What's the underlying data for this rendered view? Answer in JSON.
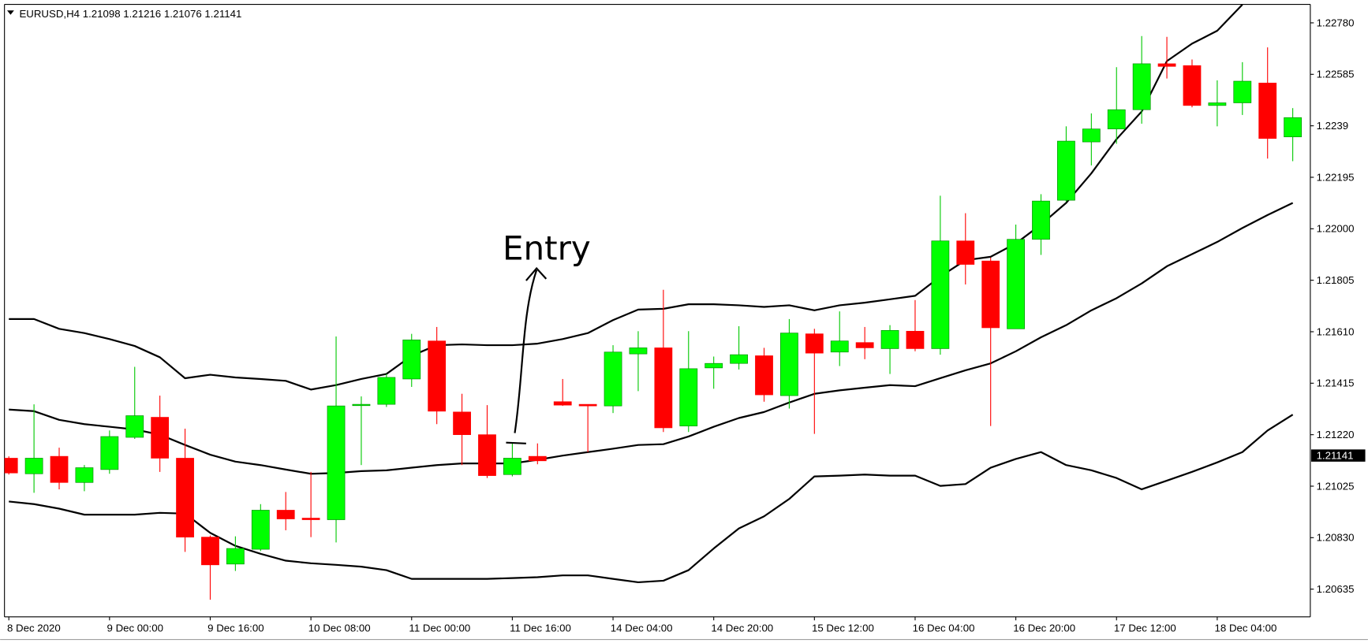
{
  "chart_data": {
    "type": "candlestick",
    "title": "EURUSD,H4  1.21098 1.21216 1.21076 1.21141",
    "annotation": "Entry",
    "current_price": 1.21141,
    "up_color": "#00ff00",
    "down_color": "#ff0000",
    "categories": [
      "8 Dec 2020",
      null,
      null,
      null,
      "9 Dec 00:00",
      null,
      null,
      null,
      "9 Dec 16:00",
      null,
      null,
      null,
      "10 Dec 08:00",
      null,
      null,
      null,
      "11 Dec 00:00",
      null,
      null,
      null,
      "11 Dec 16:00",
      null,
      null,
      null,
      "14 Dec 04:00",
      null,
      null,
      null,
      "14 Dec 20:00",
      null,
      null,
      null,
      "15 Dec 12:00",
      null,
      null,
      null,
      "16 Dec 04:00",
      null,
      null,
      null,
      "16 Dec 20:00",
      null,
      null,
      null,
      "17 Dec 12:00",
      null,
      null,
      null,
      "18 Dec 04:00",
      null,
      null,
      null
    ],
    "open": [
      1.21131,
      1.21072,
      1.21138,
      1.21039,
      1.21088,
      1.2121,
      1.21286,
      1.21131,
      1.20832,
      1.2073,
      1.20786,
      1.20934,
      1.20904,
      1.20898,
      1.21332,
      1.21335,
      1.21431,
      1.21575,
      1.21306,
      1.2122,
      1.21069,
      1.21138,
      1.21345,
      1.21335,
      1.21329,
      1.21526,
      1.21549,
      1.21253,
      1.21473,
      1.2149,
      1.21519,
      1.21368,
      1.21602,
      1.21533,
      1.21569,
      1.21546,
      1.21612,
      1.21546,
      1.21954,
      1.21878,
      1.21621,
      1.2196,
      1.22108,
      1.22329,
      1.22378,
      1.22451,
      1.22625,
      1.22618,
      1.22467,
      1.22477,
      1.22552,
      1.22348
    ],
    "high": [
      1.21138,
      1.21335,
      1.21171,
      1.21105,
      1.21236,
      1.21477,
      1.21368,
      1.21243,
      1.20838,
      1.20835,
      1.20957,
      1.21003,
      1.21079,
      1.21592,
      1.21365,
      1.2145,
      1.21602,
      1.21628,
      1.21375,
      1.21332,
      1.21187,
      1.21187,
      1.21431,
      1.21335,
      1.21559,
      1.21612,
      1.21769,
      1.21612,
      1.21516,
      1.21631,
      1.21549,
      1.21658,
      1.21621,
      1.21687,
      1.21628,
      1.21635,
      1.2173,
      1.22125,
      1.22059,
      1.21891,
      1.22016,
      1.22131,
      1.22388,
      1.22437,
      1.22612,
      1.2273,
      1.22727,
      1.22641,
      1.22562,
      1.22631,
      1.22687,
      1.22457
    ],
    "low": [
      1.21069,
      1.21,
      1.21013,
      1.21006,
      1.21072,
      1.21204,
      1.21079,
      1.20776,
      1.20595,
      1.20704,
      1.20779,
      1.20858,
      1.20832,
      1.20812,
      1.21105,
      1.21325,
      1.21401,
      1.2126,
      1.21105,
      1.21056,
      1.21062,
      1.21108,
      1.21329,
      1.21154,
      1.21302,
      1.21385,
      1.2123,
      1.2123,
      1.21394,
      1.21467,
      1.21345,
      1.21319,
      1.21223,
      1.2148,
      1.21506,
      1.2145,
      1.21536,
      1.21523,
      1.21789,
      1.21253,
      1.21621,
      1.21901,
      1.22102,
      1.2224,
      1.22322,
      1.22398,
      1.22569,
      1.2246,
      1.22388,
      1.22431,
      1.22266,
      1.22256
    ],
    "close": [
      1.21075,
      1.21131,
      1.21039,
      1.21095,
      1.21213,
      1.21292,
      1.21131,
      1.20832,
      1.20727,
      1.20789,
      1.20934,
      1.20901,
      1.20898,
      1.21329,
      1.21335,
      1.21437,
      1.21579,
      1.21309,
      1.2122,
      1.21065,
      1.21131,
      1.21121,
      1.21332,
      1.21329,
      1.21533,
      1.21549,
      1.21246,
      1.2147,
      1.2149,
      1.21523,
      1.21371,
      1.21605,
      1.21529,
      1.21575,
      1.21549,
      1.21615,
      1.21546,
      1.21954,
      1.21865,
      1.21625,
      1.2196,
      1.22105,
      1.22332,
      1.22378,
      1.22451,
      1.22625,
      1.22615,
      1.22467,
      1.22477,
      1.22559,
      1.22342,
      1.22421
    ],
    "bollinger": {
      "color": "#000000",
      "upper": [
        1.21658,
        1.21658,
        1.21621,
        1.21605,
        1.21582,
        1.21556,
        1.21513,
        1.21434,
        1.21447,
        1.21437,
        1.21431,
        1.21424,
        1.21391,
        1.21408,
        1.21431,
        1.2145,
        1.21519,
        1.21559,
        1.21562,
        1.21559,
        1.21559,
        1.21565,
        1.21582,
        1.21605,
        1.21654,
        1.21694,
        1.21697,
        1.21714,
        1.21714,
        1.2171,
        1.21704,
        1.2171,
        1.21691,
        1.2171,
        1.2172,
        1.21733,
        1.21746,
        1.21819,
        1.21881,
        1.21894,
        1.21944,
        1.22016,
        1.22098,
        1.2221,
        1.22339,
        1.22444,
        1.22635,
        1.22701,
        1.2275,
        1.22849,
        null,
        null
      ],
      "middle": [
        1.21315,
        1.21309,
        1.21276,
        1.2126,
        1.2125,
        1.2124,
        1.2122,
        1.21181,
        1.21144,
        1.21118,
        1.21105,
        1.21088,
        1.21072,
        1.21075,
        1.21082,
        1.21085,
        1.21095,
        1.21105,
        1.21111,
        1.21111,
        1.21111,
        1.21125,
        1.21141,
        1.21154,
        1.21167,
        1.21181,
        1.21184,
        1.21213,
        1.2125,
        1.21283,
        1.21306,
        1.21342,
        1.21375,
        1.21388,
        1.21398,
        1.21408,
        1.21404,
        1.21434,
        1.21464,
        1.2149,
        1.21536,
        1.21589,
        1.21635,
        1.21691,
        1.21737,
        1.21793,
        1.21858,
        1.21904,
        1.2195,
        1.22003,
        1.22052,
        1.22098
      ],
      "lower": [
        1.20967,
        1.20957,
        1.2094,
        1.20917,
        1.20917,
        1.20917,
        1.20924,
        1.20921,
        1.20848,
        1.20799,
        1.20769,
        1.20743,
        1.20733,
        1.20727,
        1.2072,
        1.20707,
        1.20674,
        1.20674,
        1.20674,
        1.20674,
        1.20677,
        1.2068,
        1.20687,
        1.20687,
        1.20674,
        1.20661,
        1.20667,
        1.20707,
        1.20789,
        1.20865,
        1.20911,
        1.20977,
        1.21062,
        1.21065,
        1.21069,
        1.21065,
        1.21065,
        1.21026,
        1.21033,
        1.21095,
        1.21128,
        1.21154,
        1.21105,
        1.21085,
        1.21056,
        1.21013,
        1.21046,
        1.21079,
        1.21115,
        1.21154,
        1.21236,
        1.21296
      ]
    },
    "ylim": [
      1.2053,
      1.2285
    ],
    "yticks": [
      {
        "value": 1.2278,
        "label": "1.22780"
      },
      1.22585,
      1.2239,
      1.22195,
      {
        "value": 1.22,
        "label": "1.22000"
      },
      1.21805,
      {
        "value": 1.2161,
        "label": "1.21610"
      },
      1.21415,
      {
        "value": 1.2122,
        "label": "1.21220"
      },
      1.21025,
      {
        "value": 1.2083,
        "label": "1.20830"
      },
      1.20635
    ]
  }
}
